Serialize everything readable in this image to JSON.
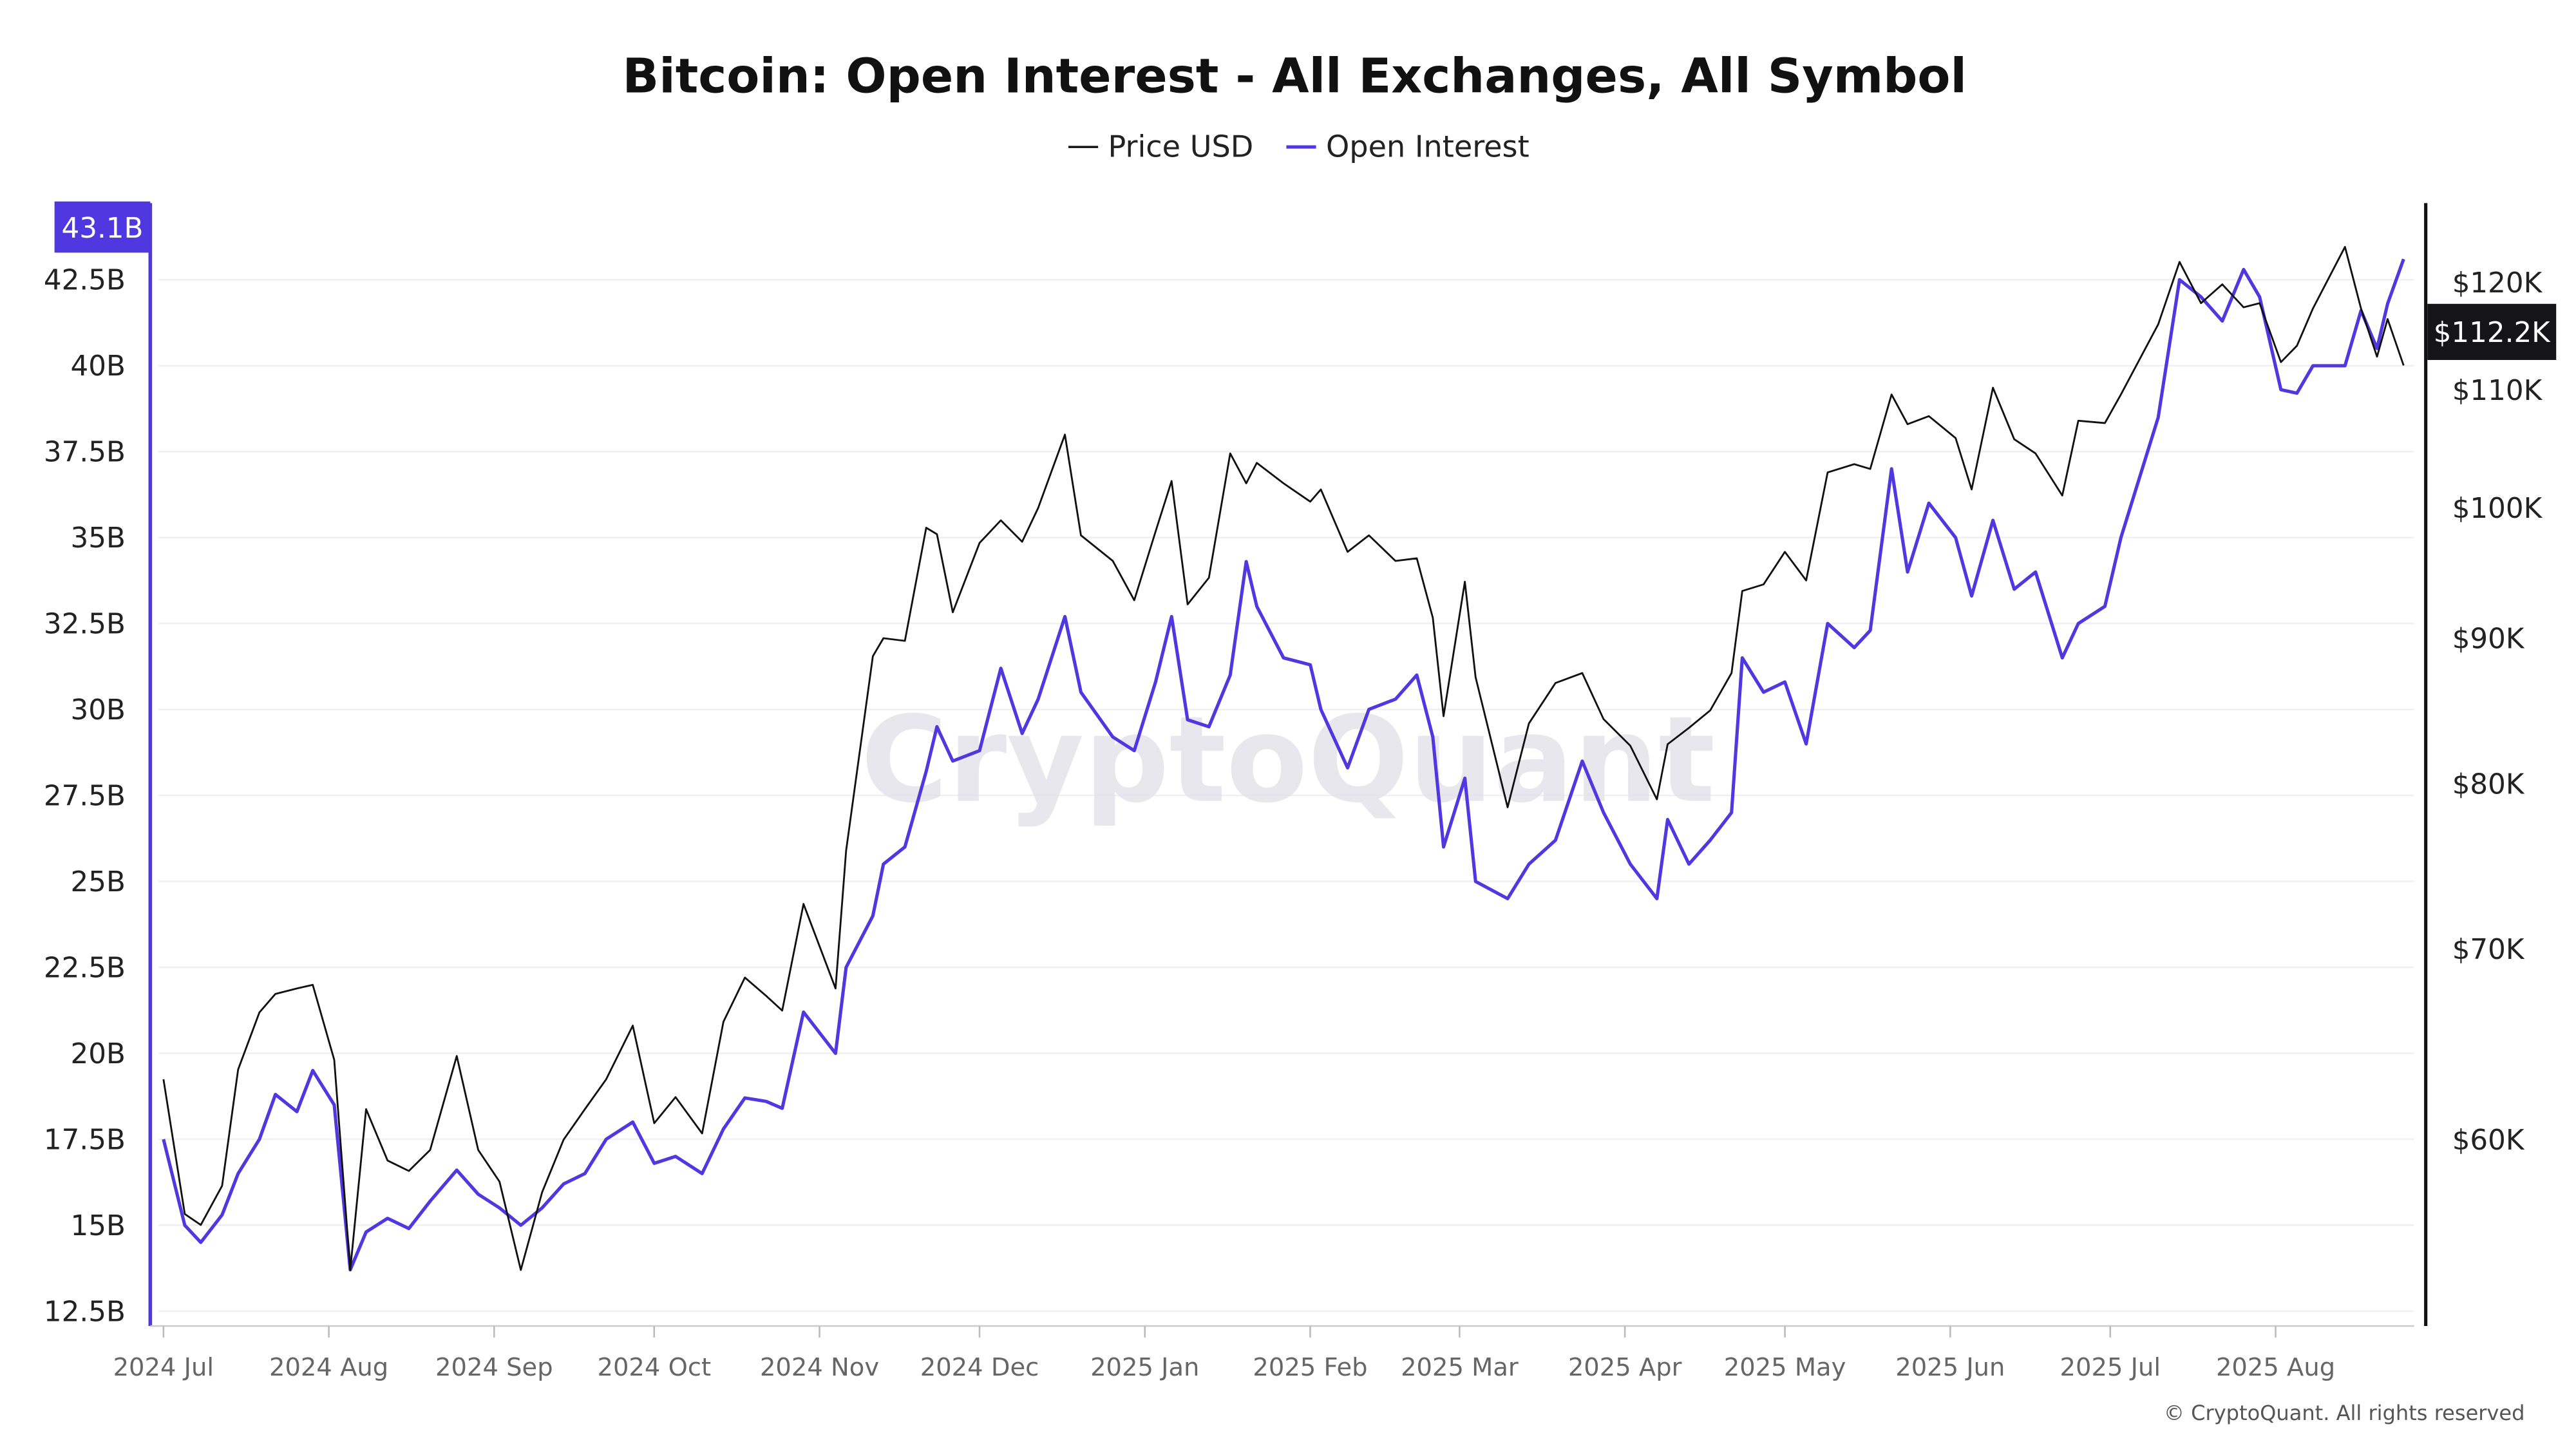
{
  "chart_data": {
    "type": "line",
    "title": "Bitcoin: Open Interest - All Exchanges, All Symbol",
    "watermark": "CryptoQuant",
    "copyright": "© CryptoQuant. All rights reserved",
    "legend_position": "top-center",
    "grid": true,
    "x_ticks": [
      "2024 Jul",
      "2024 Aug",
      "2024 Sep",
      "2024 Oct",
      "2024 Nov",
      "2024 Dec",
      "2025 Jan",
      "2025 Feb",
      "2025 Mar",
      "2025 Apr",
      "2025 May",
      "2025 Jun",
      "2025 Jul",
      "2025 Aug"
    ],
    "x_tick_dates": [
      "2024-07-01",
      "2024-08-01",
      "2024-09-01",
      "2024-10-01",
      "2024-11-01",
      "2024-12-01",
      "2025-01-01",
      "2025-02-01",
      "2025-03-01",
      "2025-04-01",
      "2025-05-01",
      "2025-06-01",
      "2025-07-01",
      "2025-08-01"
    ],
    "xlim": [
      "2024-06-29",
      "2025-08-27"
    ],
    "y_left": {
      "scale": "linear",
      "ylim": [
        12.5,
        45
      ],
      "ticks": [
        "12.5B",
        "15B",
        "17.5B",
        "20B",
        "22.5B",
        "25B",
        "27.5B",
        "30B",
        "32.5B",
        "35B",
        "37.5B",
        "40B",
        "42.5B"
      ],
      "tick_values": [
        12.5,
        15,
        17.5,
        20,
        22.5,
        25,
        27.5,
        30,
        32.5,
        35,
        37.5,
        40,
        42.5
      ],
      "last_value_label": "43.1B"
    },
    "y_right": {
      "scale": "log",
      "ticks": [
        "$60K",
        "$70K",
        "$80K",
        "$90K",
        "$100K",
        "$110K",
        "$120K"
      ],
      "tick_values": [
        60,
        70,
        80,
        90,
        100,
        110,
        120
      ],
      "last_value_label": "$112.2K"
    },
    "colors": {
      "price": "#111111",
      "open_interest": "#4F38E0",
      "price_tag_bg": "#151517",
      "oi_tag_bg": "#4F38E0"
    },
    "x": [
      "2024-07-01",
      "2024-07-05",
      "2024-07-08",
      "2024-07-12",
      "2024-07-15",
      "2024-07-19",
      "2024-07-22",
      "2024-07-26",
      "2024-07-29",
      "2024-08-02",
      "2024-08-05",
      "2024-08-08",
      "2024-08-12",
      "2024-08-16",
      "2024-08-20",
      "2024-08-25",
      "2024-08-29",
      "2024-09-02",
      "2024-09-06",
      "2024-09-10",
      "2024-09-14",
      "2024-09-18",
      "2024-09-22",
      "2024-09-27",
      "2024-10-01",
      "2024-10-05",
      "2024-10-10",
      "2024-10-14",
      "2024-10-18",
      "2024-10-22",
      "2024-10-25",
      "2024-10-29",
      "2024-11-04",
      "2024-11-06",
      "2024-11-11",
      "2024-11-13",
      "2024-11-17",
      "2024-11-21",
      "2024-11-23",
      "2024-11-26",
      "2024-12-01",
      "2024-12-05",
      "2024-12-09",
      "2024-12-12",
      "2024-12-17",
      "2024-12-20",
      "2024-12-26",
      "2024-12-30",
      "2025-01-03",
      "2025-01-06",
      "2025-01-09",
      "2025-01-13",
      "2025-01-17",
      "2025-01-20",
      "2025-01-22",
      "2025-01-27",
      "2025-02-01",
      "2025-02-03",
      "2025-02-08",
      "2025-02-12",
      "2025-02-17",
      "2025-02-21",
      "2025-02-24",
      "2025-02-26",
      "2025-03-02",
      "2025-03-04",
      "2025-03-10",
      "2025-03-14",
      "2025-03-19",
      "2025-03-24",
      "2025-03-28",
      "2025-04-02",
      "2025-04-07",
      "2025-04-09",
      "2025-04-13",
      "2025-04-17",
      "2025-04-21",
      "2025-04-23",
      "2025-04-27",
      "2025-05-01",
      "2025-05-05",
      "2025-05-09",
      "2025-05-14",
      "2025-05-17",
      "2025-05-21",
      "2025-05-24",
      "2025-05-28",
      "2025-06-02",
      "2025-06-05",
      "2025-06-09",
      "2025-06-13",
      "2025-06-17",
      "2025-06-22",
      "2025-06-25",
      "2025-06-30",
      "2025-07-03",
      "2025-07-10",
      "2025-07-14",
      "2025-07-18",
      "2025-07-22",
      "2025-07-26",
      "2025-07-29",
      "2025-08-02",
      "2025-08-05",
      "2025-08-08",
      "2025-08-14",
      "2025-08-17",
      "2025-08-20",
      "2025-08-22",
      "2025-08-25"
    ],
    "series": [
      {
        "name": "Price USD",
        "axis": "right",
        "unit": "K USD",
        "values": [
          63.0,
          56.5,
          56.0,
          57.8,
          63.5,
          66.5,
          67.5,
          67.8,
          68.0,
          64.0,
          54.0,
          61.5,
          59.0,
          58.5,
          59.5,
          64.2,
          59.5,
          58.0,
          54.0,
          57.5,
          60.0,
          61.5,
          63.0,
          65.8,
          60.8,
          62.1,
          60.3,
          66.0,
          68.4,
          67.4,
          66.6,
          72.6,
          67.8,
          75.8,
          88.7,
          90.0,
          89.8,
          98.4,
          97.9,
          91.9,
          97.2,
          99.0,
          97.3,
          100.0,
          106.1,
          97.8,
          95.8,
          92.8,
          98.1,
          102.2,
          92.5,
          94.5,
          104.5,
          102.0,
          103.7,
          102.0,
          100.5,
          101.5,
          96.5,
          97.8,
          95.8,
          96.0,
          91.5,
          84.5,
          94.2,
          87.2,
          78.5,
          84.0,
          86.8,
          87.5,
          84.3,
          82.5,
          79.0,
          82.6,
          83.7,
          84.9,
          87.5,
          93.5,
          94.0,
          96.5,
          94.3,
          102.9,
          103.6,
          103.2,
          109.6,
          107.0,
          107.7,
          105.8,
          101.5,
          110.2,
          105.7,
          104.5,
          101.0,
          107.3,
          107.1,
          109.6,
          116.0,
          122.0,
          118.0,
          119.8,
          117.6,
          118.0,
          112.5,
          114.0,
          117.5,
          123.5,
          117.5,
          113.0,
          116.5,
          112.2
        ]
      },
      {
        "name": "Open Interest",
        "axis": "left",
        "unit": "B USD",
        "values": [
          17.5,
          15.0,
          14.5,
          15.3,
          16.5,
          17.5,
          18.8,
          18.3,
          19.5,
          18.5,
          13.7,
          14.8,
          15.2,
          14.9,
          15.7,
          16.6,
          15.9,
          15.5,
          15.0,
          15.5,
          16.2,
          16.5,
          17.5,
          18.0,
          16.8,
          17.0,
          16.5,
          17.8,
          18.7,
          18.6,
          18.4,
          21.2,
          20.0,
          22.5,
          24.0,
          25.5,
          26.0,
          28.2,
          29.5,
          28.5,
          28.8,
          31.2,
          29.3,
          30.3,
          32.7,
          30.5,
          29.2,
          28.8,
          30.8,
          32.7,
          29.7,
          29.5,
          31.0,
          34.3,
          33.0,
          31.5,
          31.3,
          30.0,
          28.3,
          30.0,
          30.3,
          31.0,
          29.2,
          26.0,
          28.0,
          25.0,
          24.5,
          25.5,
          26.2,
          28.5,
          27.0,
          25.5,
          24.5,
          26.8,
          25.5,
          26.2,
          27.0,
          31.5,
          30.5,
          30.8,
          29.0,
          32.5,
          31.8,
          32.3,
          37.0,
          34.0,
          36.0,
          35.0,
          33.3,
          35.5,
          33.5,
          34.0,
          31.5,
          32.5,
          33.0,
          35.0,
          38.5,
          42.5,
          42.0,
          41.3,
          42.8,
          42.0,
          39.3,
          39.2,
          40.0,
          40.0,
          41.6,
          40.5,
          41.8,
          43.1
        ]
      }
    ]
  }
}
